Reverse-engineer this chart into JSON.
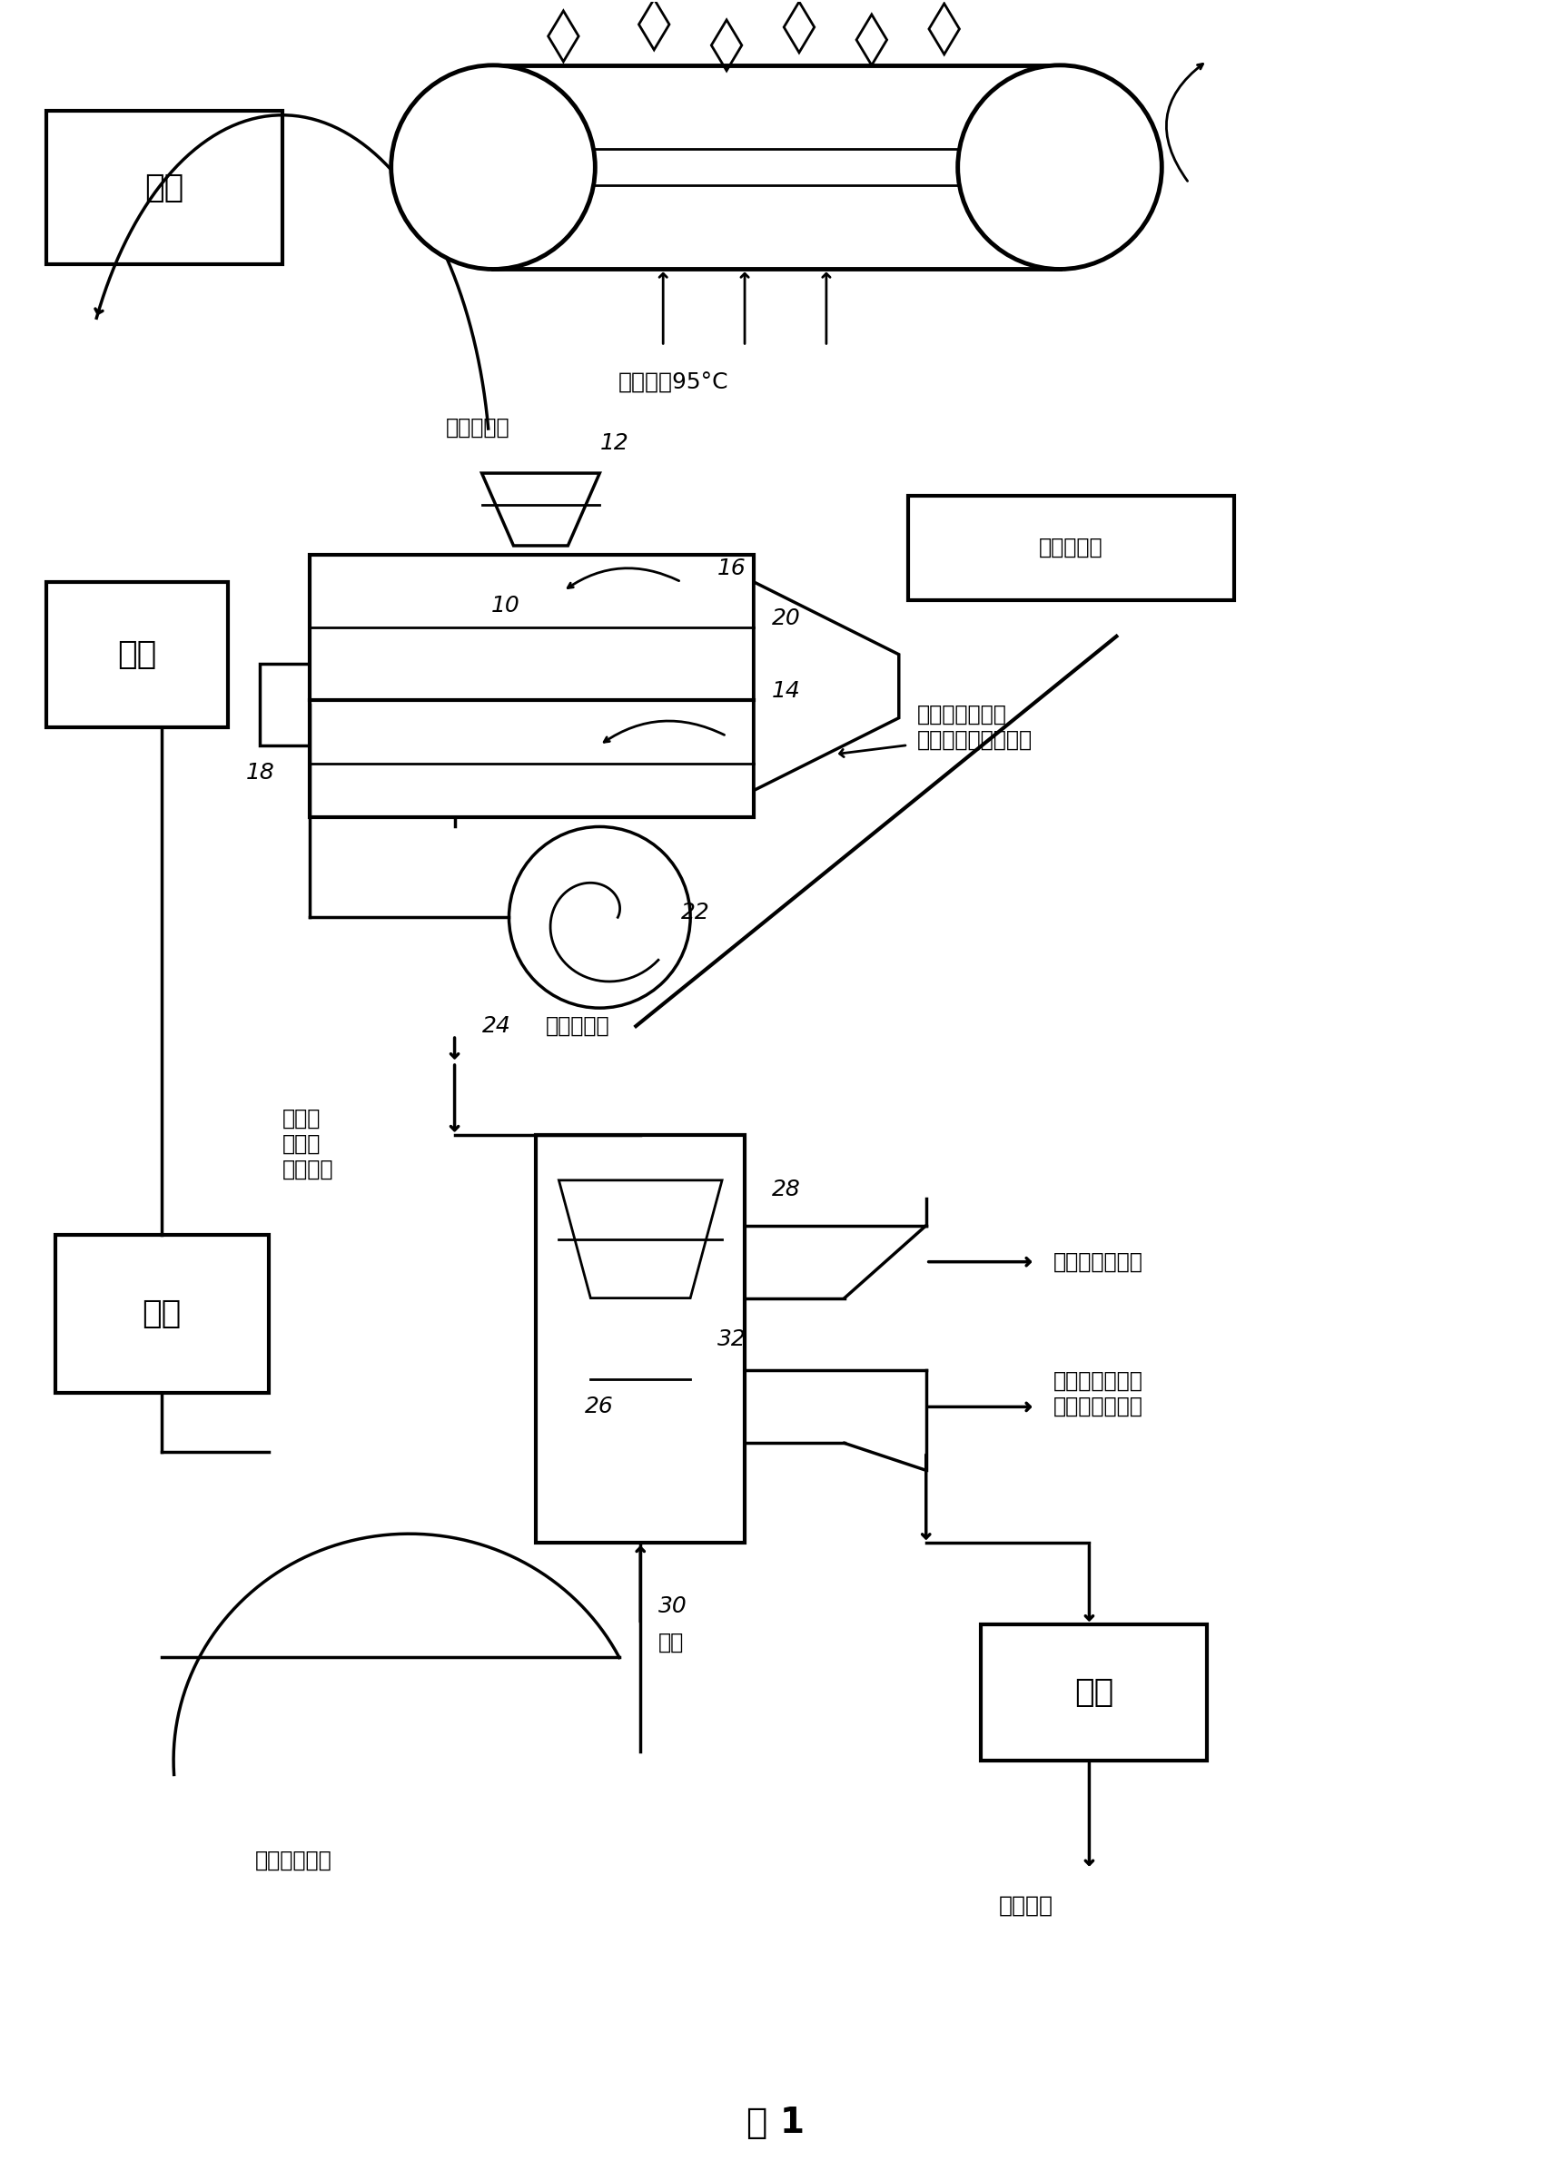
{
  "title": "图 1",
  "background_color": "#ffffff",
  "line_color": "#000000",
  "labels": {
    "dryer_box": "烘干",
    "hot_air": "热空气，95°C",
    "husking_box": "去壳",
    "cylindrical_grindstone": "圆柱形磨石",
    "air_separation_box": "风选",
    "sieving_box": "筛选",
    "label_12": "12",
    "label_10": "10",
    "label_16": "16",
    "label_20": "20",
    "label_14": "14",
    "label_18": "18",
    "label_22": "22",
    "label_24": "24",
    "label_26": "26",
    "label_28": "28",
    "label_30": "30",
    "label_32": "32",
    "feed_flaxseed": "送入亚麦籽",
    "airflow_label": "调节空气流",
    "sieve_output": "通过筛\n网的壳\n皮和籽仁",
    "mix_label": "壳皮、籽仁和未\n破裂亚麦籽的混合物",
    "shell_light": "壳皮，较轻部分",
    "kernel_heavy": "籽仁和未破裂亚\n麦籽，较重部分",
    "air_label": "空气",
    "uncracked_label": "未破裂亚麦籽",
    "kernel_output": "得到籽仁"
  }
}
